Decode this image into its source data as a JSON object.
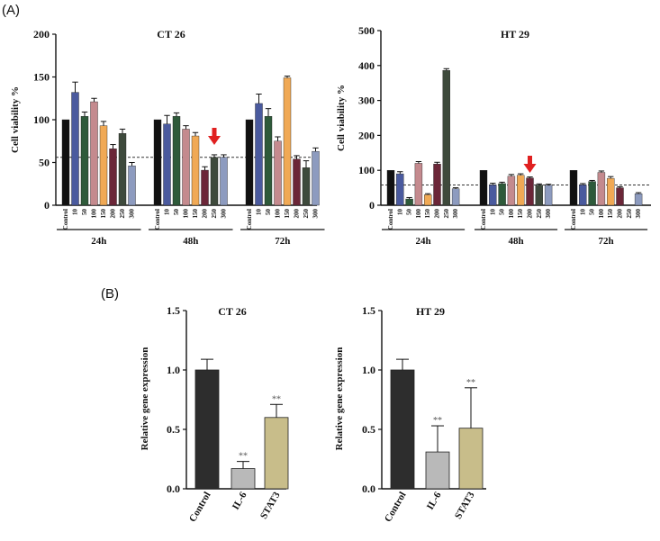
{
  "panel_labels": {
    "a": "(A)",
    "b": "(B)"
  },
  "colors": {
    "series": [
      "#111111",
      "#4a5a9e",
      "#2e5a3a",
      "#c48a8e",
      "#f0a955",
      "#6b2638",
      "#3e4a3c",
      "#8d9bbf"
    ],
    "bar_b": [
      "#2d2d2d",
      "#b9b9b9",
      "#c8bd8a"
    ],
    "threshold": "#333333",
    "arrow": "#e02020",
    "axis": "#111111"
  },
  "chart_data": [
    {
      "id": "ct26_viability",
      "type": "bar",
      "title": "CT 26",
      "ylabel": "Cell viability %",
      "ylim": [
        0,
        200
      ],
      "yticks": [
        0,
        50,
        100,
        150,
        200
      ],
      "threshold": 56,
      "groups": [
        "24h",
        "48h",
        "72h"
      ],
      "categories": [
        "Control",
        "10",
        "50",
        "100",
        "150",
        "200",
        "250",
        "300"
      ],
      "values": [
        [
          100,
          132,
          104,
          121,
          93,
          66,
          84,
          46
        ],
        [
          100,
          95,
          104,
          89,
          81,
          41,
          56,
          56
        ],
        [
          100,
          119,
          104,
          75,
          149,
          54,
          44,
          63
        ]
      ],
      "errors": [
        [
          0,
          12,
          5,
          4,
          5,
          5,
          5,
          4
        ],
        [
          0,
          10,
          4,
          4,
          4,
          4,
          3,
          3
        ],
        [
          0,
          11,
          9,
          5,
          2,
          4,
          8,
          4
        ]
      ],
      "arrow": {
        "group": 1,
        "category": 6
      }
    },
    {
      "id": "ht29_viability",
      "type": "bar",
      "title": "HT 29",
      "ylabel": "Cell viability %",
      "ylim": [
        0,
        500
      ],
      "yticks": [
        0,
        100,
        200,
        300,
        400,
        500
      ],
      "threshold": 58,
      "groups": [
        "24h",
        "48h",
        "72h"
      ],
      "categories": [
        "Control",
        "10",
        "50",
        "100",
        "150",
        "200",
        "250",
        "300"
      ],
      "values": [
        [
          100,
          90,
          18,
          120,
          30,
          118,
          386,
          47
        ],
        [
          100,
          58,
          62,
          83,
          86,
          78,
          58,
          57
        ],
        [
          100,
          58,
          68,
          94,
          77,
          50,
          0,
          33
        ]
      ],
      "errors": [
        [
          0,
          6,
          4,
          5,
          3,
          5,
          5,
          3
        ],
        [
          0,
          5,
          4,
          5,
          4,
          3,
          3,
          3
        ],
        [
          0,
          4,
          3,
          4,
          5,
          3,
          0,
          3
        ]
      ],
      "arrow": {
        "group": 1,
        "category": 5
      }
    },
    {
      "id": "ct26_expression",
      "type": "bar",
      "title": "CT 26",
      "ylabel": "Relative gene expression",
      "ylim": [
        0,
        1.5
      ],
      "yticks": [
        "0.0",
        "0.5",
        "1.0",
        "1.5"
      ],
      "categories": [
        "Control",
        "IL-6",
        "STAT3"
      ],
      "values": [
        1.0,
        0.17,
        0.6
      ],
      "errors": [
        0.09,
        0.06,
        0.11
      ],
      "significance": [
        "",
        "**",
        "**"
      ]
    },
    {
      "id": "ht29_expression",
      "type": "bar",
      "title": "HT 29",
      "ylabel": "Relative gene expression",
      "ylim": [
        0,
        1.5
      ],
      "yticks": [
        "0.0",
        "0.5",
        "1.0",
        "1.5"
      ],
      "categories": [
        "Control",
        "IL-6",
        "STAT3"
      ],
      "values": [
        1.0,
        0.31,
        0.51
      ],
      "errors": [
        0.09,
        0.22,
        0.34
      ],
      "significance": [
        "",
        "**",
        "**"
      ]
    }
  ]
}
